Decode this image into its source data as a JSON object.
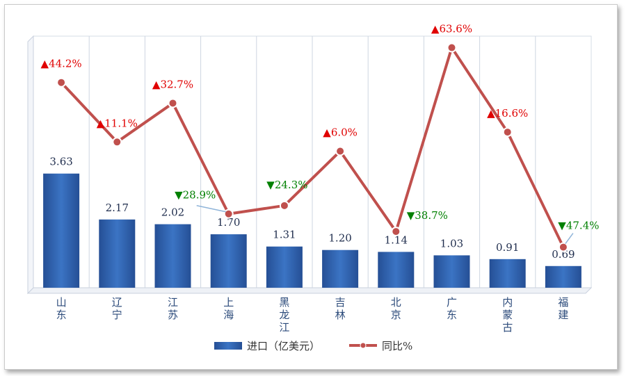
{
  "chart_data": {
    "type": "bar",
    "categories": [
      "山东",
      "辽宁",
      "江苏",
      "上海",
      "黑龙江",
      "吉林",
      "北京",
      "广东",
      "内蒙古",
      "福建"
    ],
    "series": [
      {
        "name": "进口（亿美元）",
        "type": "bar",
        "values": [
          3.63,
          2.17,
          2.02,
          1.7,
          1.31,
          1.2,
          1.14,
          1.03,
          0.91,
          0.69
        ],
        "labels": [
          "3.63",
          "2.17",
          "2.02",
          "1.70",
          "1.31",
          "1.20",
          "1.14",
          "1.03",
          "0.91",
          "0.69"
        ]
      },
      {
        "name": "同比%",
        "type": "line",
        "values": [
          44.2,
          11.1,
          32.7,
          -28.9,
          -24.3,
          6.0,
          -38.7,
          63.6,
          16.6,
          -47.4
        ],
        "labels": [
          "44.2%",
          "11.1%",
          "32.7%",
          "28.9%",
          "24.3%",
          "6.0%",
          "38.7%",
          "63.6%",
          "16.6%",
          "47.4%"
        ]
      }
    ],
    "up_marker": "▲",
    "down_marker": "▼",
    "bar_ylim": [
      0,
      8
    ],
    "line_ylim": [
      -70,
      70
    ],
    "grid": "vertical",
    "legend_position": "bottom",
    "colors": {
      "bar": "#2f62b0",
      "line": "#c0504d",
      "up": "#e00000",
      "down": "#008000"
    }
  },
  "legend": {
    "bar_label": "进口（亿美元）",
    "line_label": "同比%"
  }
}
